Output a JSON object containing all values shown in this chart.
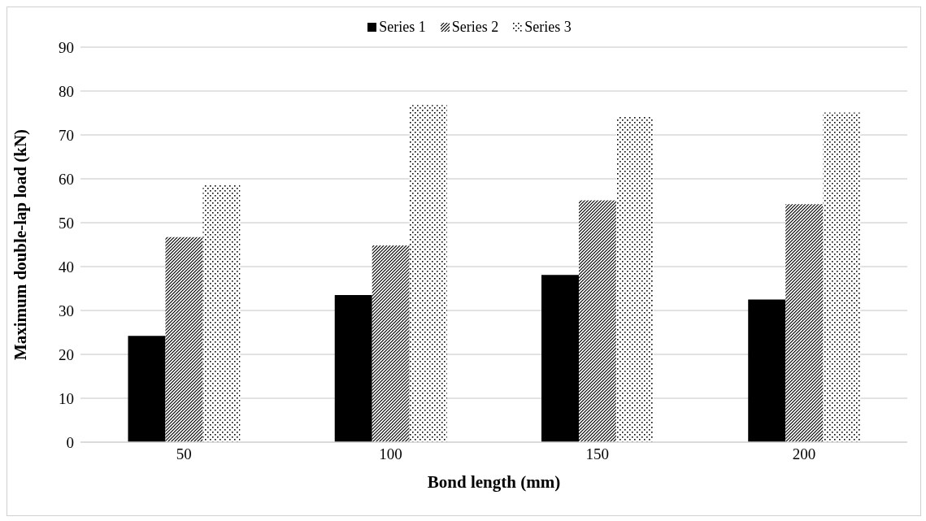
{
  "chart_data": {
    "type": "bar",
    "xlabel": "Bond length (mm)",
    "ylabel": "Maximum double-lap load (kN)",
    "categories": [
      "50",
      "100",
      "150",
      "200"
    ],
    "series": [
      {
        "name": "Series 1",
        "color": "#000000",
        "values": [
          24.2,
          33.5,
          38.1,
          32.5
        ]
      },
      {
        "name": "Series 2",
        "color": "#000000",
        "values": [
          46.7,
          44.8,
          55.1,
          54.2
        ]
      },
      {
        "name": "Series 3",
        "color": "#000000",
        "values": [
          58.7,
          76.8,
          74.2,
          75.1
        ]
      }
    ],
    "ylim": [
      0,
      90
    ],
    "yticks": [
      0,
      10,
      20,
      30,
      40,
      50,
      60,
      70,
      80,
      90
    ],
    "grid": "y",
    "legend": "top"
  }
}
